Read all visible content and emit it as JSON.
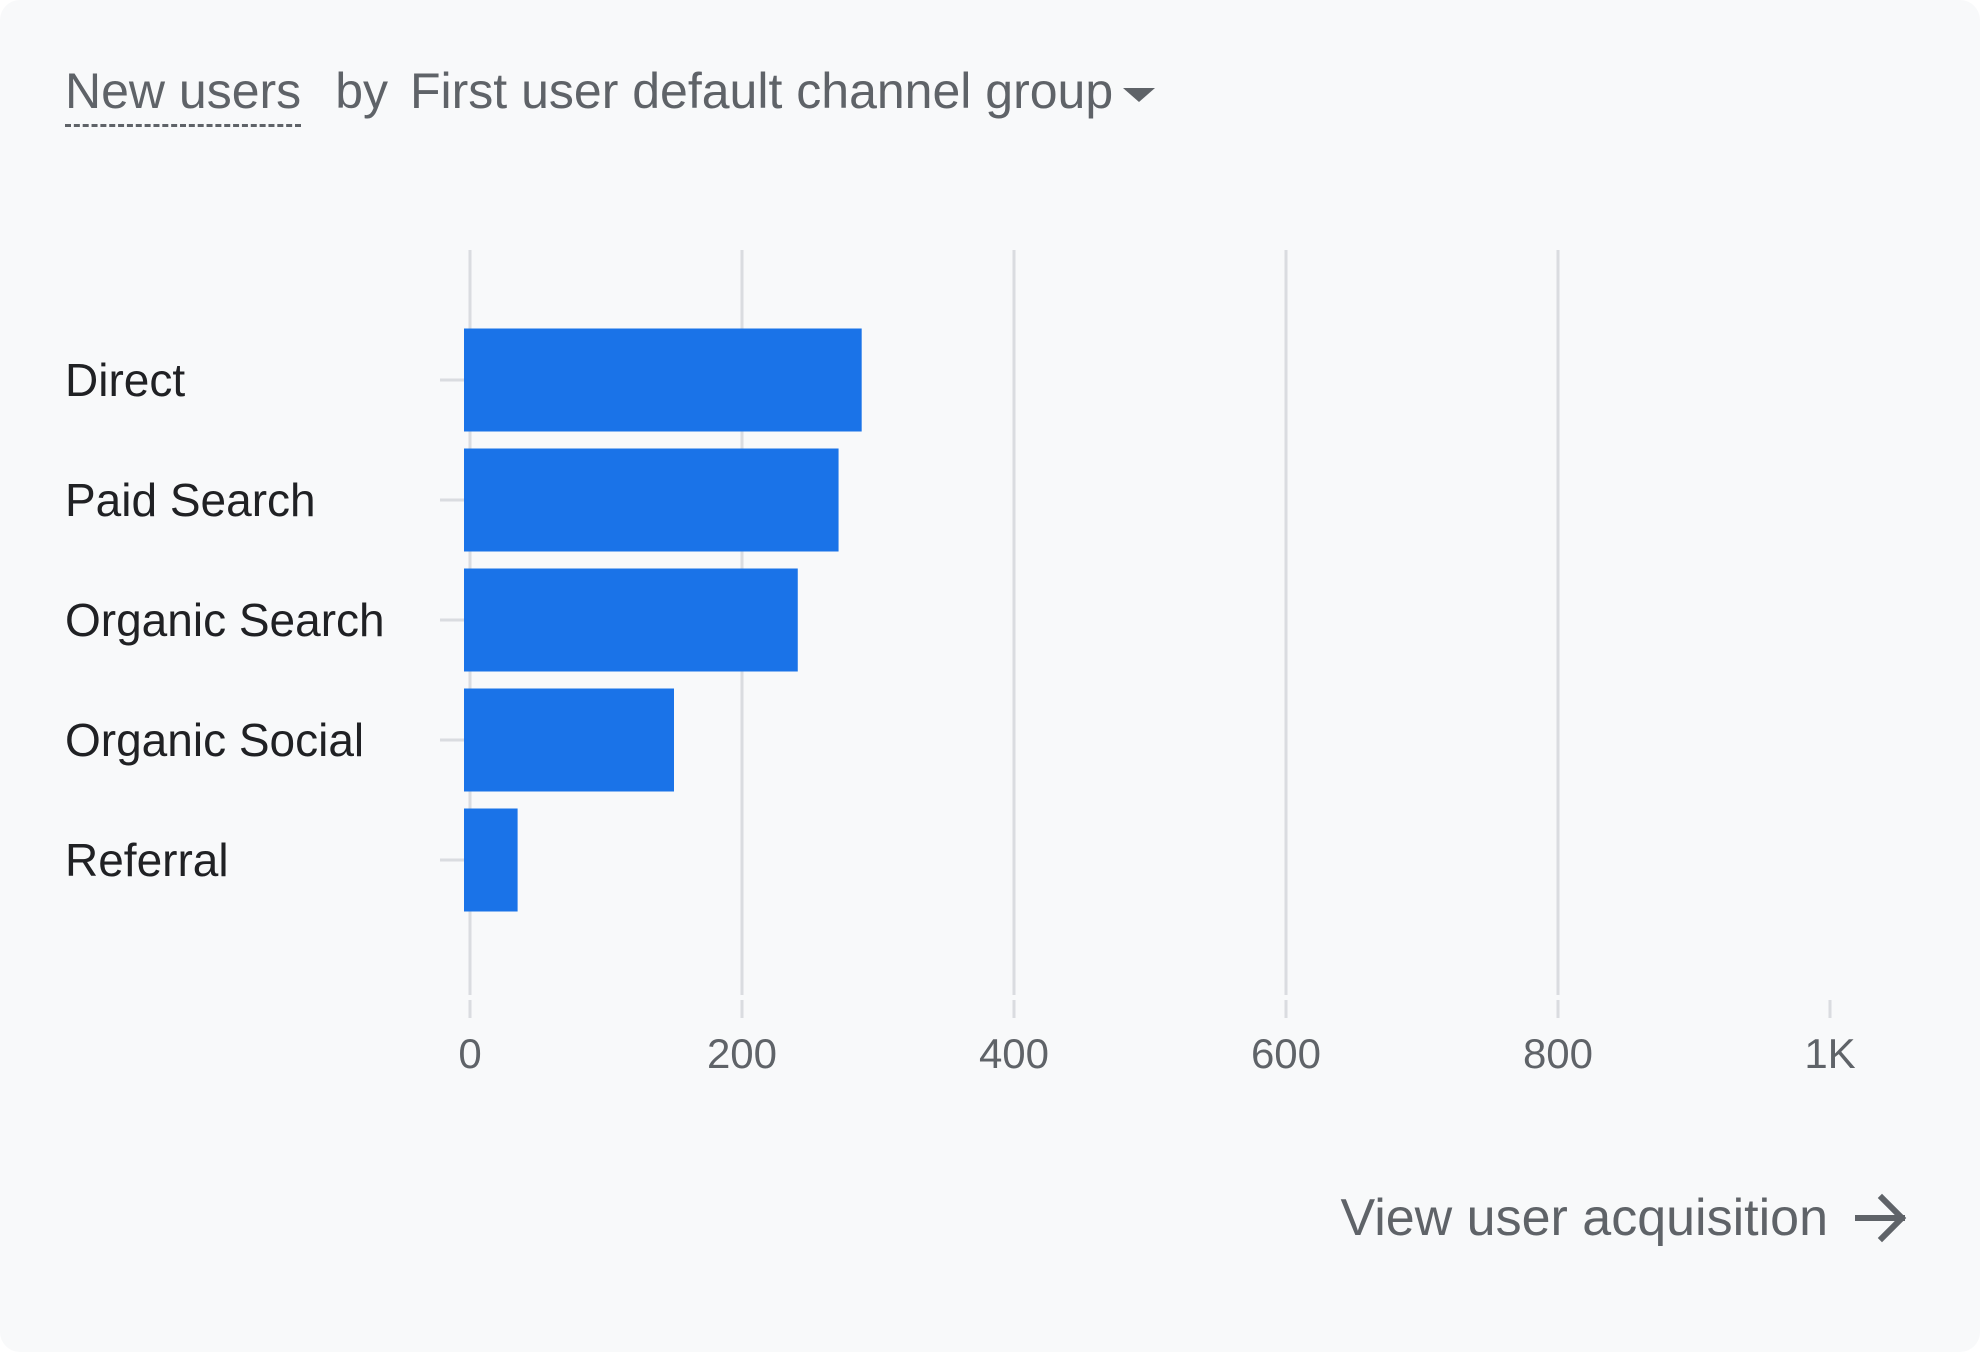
{
  "header": {
    "metric_label": "New users",
    "by_label": "by",
    "dimension_label": "First user default channel group"
  },
  "footer": {
    "link_label": "View user acquisition"
  },
  "colors": {
    "bar": "#1a73e8",
    "grid": "#dadce0",
    "text_dark": "#202124",
    "text_muted": "#5f6368",
    "background": "#f8f9fa"
  },
  "icons": {
    "dropdown": "caret-down-icon",
    "link": "arrow-right-icon"
  },
  "chart_data": {
    "type": "bar",
    "orientation": "horizontal",
    "categories": [
      "Direct",
      "Paid Search",
      "Organic Search",
      "Organic Social",
      "Referral"
    ],
    "values": [
      288,
      271,
      241,
      150,
      35
    ],
    "xlim": [
      0,
      1000
    ],
    "x_ticks": [
      0,
      200,
      400,
      600,
      800,
      1000
    ],
    "x_tick_labels": [
      "0",
      "200",
      "400",
      "600",
      "800",
      "1K"
    ],
    "grid": true
  }
}
